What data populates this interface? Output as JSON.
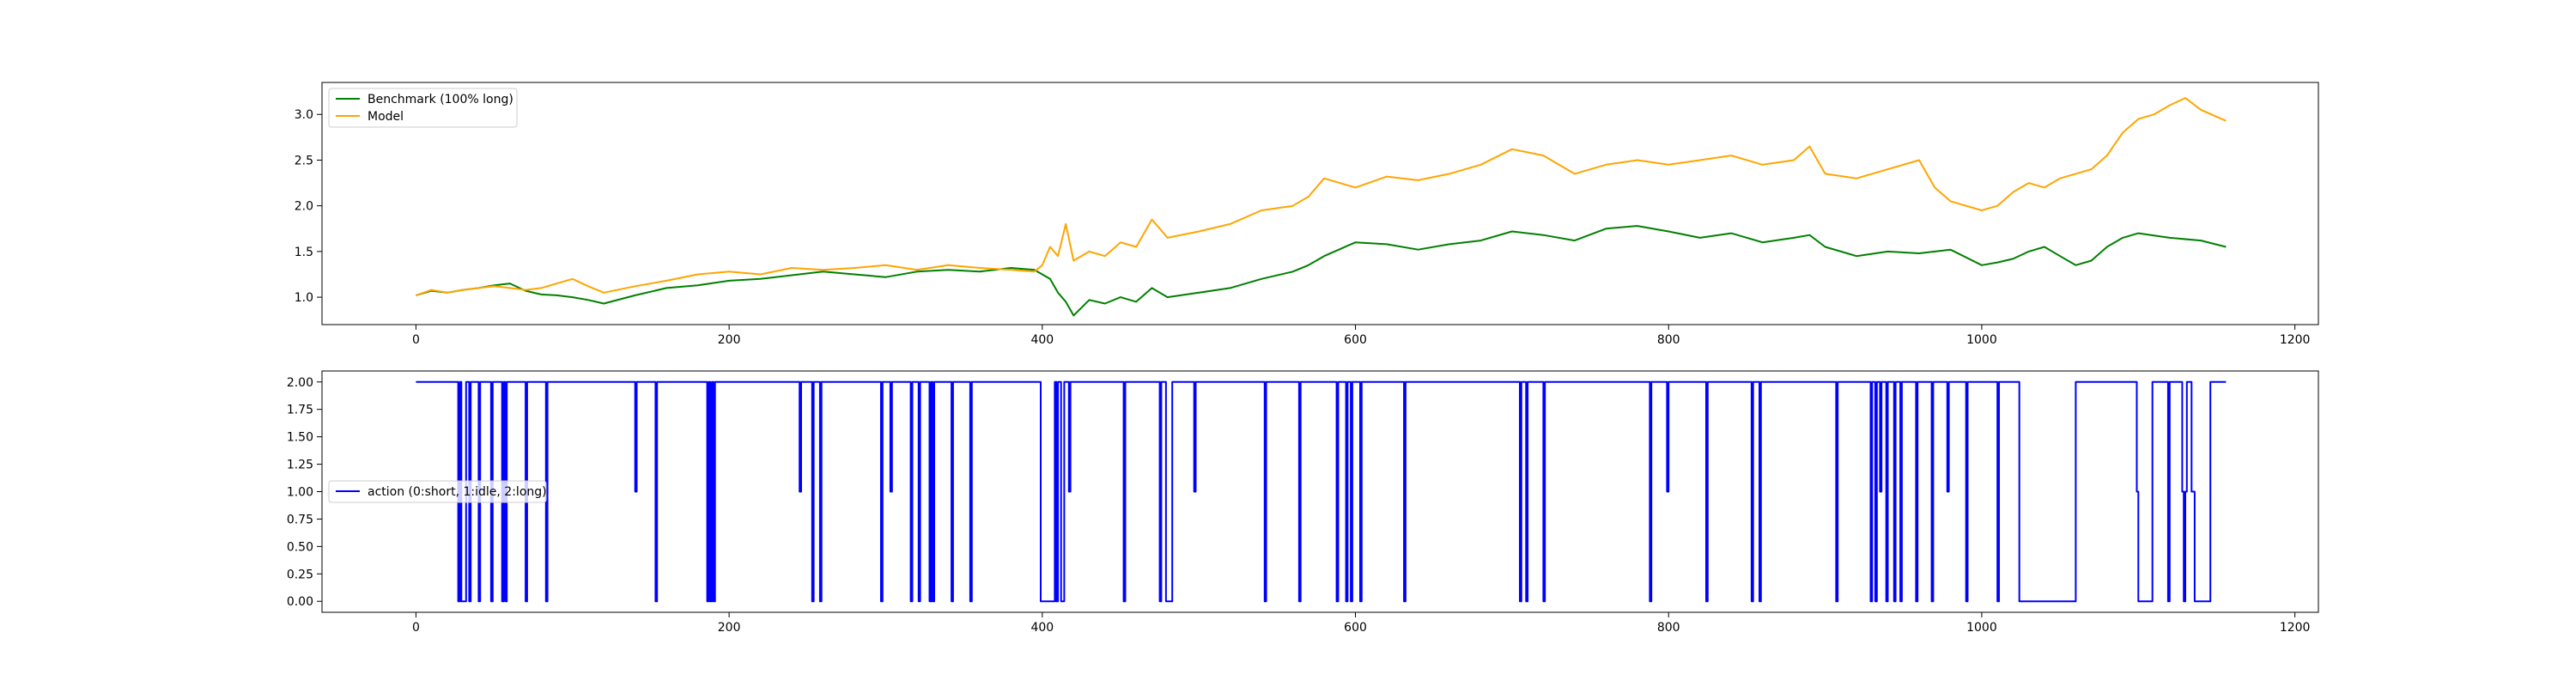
{
  "chart_data": [
    {
      "type": "line",
      "title": "",
      "xlabel": "",
      "ylabel": "",
      "xlim": [
        -60,
        1215
      ],
      "ylim": [
        0.7,
        3.35
      ],
      "xticks": [
        0,
        200,
        400,
        600,
        800,
        1000,
        1200
      ],
      "yticks": [
        1.0,
        1.5,
        2.0,
        2.5,
        3.0
      ],
      "ytick_labels": [
        "1.0",
        "1.5",
        "2.0",
        "2.5",
        "3.0"
      ],
      "grid": false,
      "legend": "upper left",
      "series": [
        {
          "name": "Benchmark (100% long)",
          "color": "#008000",
          "x": [
            0,
            10,
            20,
            30,
            40,
            50,
            60,
            70,
            80,
            90,
            100,
            110,
            120,
            140,
            160,
            180,
            200,
            220,
            240,
            260,
            280,
            300,
            320,
            340,
            360,
            380,
            395,
            400,
            405,
            410,
            415,
            420,
            430,
            440,
            450,
            460,
            470,
            480,
            500,
            520,
            540,
            560,
            570,
            580,
            600,
            620,
            640,
            660,
            680,
            700,
            720,
            740,
            760,
            780,
            800,
            820,
            840,
            860,
            880,
            890,
            900,
            920,
            940,
            960,
            980,
            1000,
            1010,
            1020,
            1030,
            1040,
            1050,
            1060,
            1070,
            1080,
            1090,
            1100,
            1120,
            1140,
            1156
          ],
          "values": [
            1.02,
            1.07,
            1.05,
            1.08,
            1.1,
            1.13,
            1.15,
            1.07,
            1.03,
            1.02,
            1.0,
            0.97,
            0.93,
            1.02,
            1.1,
            1.13,
            1.18,
            1.2,
            1.24,
            1.28,
            1.25,
            1.22,
            1.28,
            1.3,
            1.28,
            1.32,
            1.3,
            1.25,
            1.2,
            1.05,
            0.95,
            0.8,
            0.97,
            0.93,
            1.0,
            0.95,
            1.1,
            1.0,
            1.05,
            1.1,
            1.2,
            1.28,
            1.35,
            1.45,
            1.6,
            1.58,
            1.52,
            1.58,
            1.62,
            1.72,
            1.68,
            1.62,
            1.75,
            1.78,
            1.72,
            1.65,
            1.7,
            1.6,
            1.65,
            1.68,
            1.55,
            1.45,
            1.5,
            1.48,
            1.52,
            1.35,
            1.38,
            1.42,
            1.5,
            1.55,
            1.45,
            1.35,
            1.4,
            1.55,
            1.65,
            1.7,
            1.65,
            1.62,
            1.55
          ]
        },
        {
          "name": "Model",
          "color": "#FFA500",
          "x": [
            0,
            10,
            20,
            30,
            40,
            50,
            60,
            70,
            80,
            90,
            100,
            110,
            120,
            140,
            160,
            180,
            200,
            220,
            240,
            260,
            280,
            300,
            320,
            340,
            360,
            380,
            395,
            400,
            405,
            410,
            415,
            420,
            430,
            440,
            450,
            460,
            470,
            480,
            500,
            520,
            540,
            560,
            570,
            580,
            600,
            620,
            640,
            660,
            680,
            700,
            720,
            740,
            760,
            780,
            800,
            820,
            840,
            860,
            880,
            890,
            900,
            920,
            940,
            960,
            970,
            980,
            1000,
            1010,
            1020,
            1030,
            1040,
            1050,
            1060,
            1070,
            1080,
            1090,
            1100,
            1110,
            1120,
            1130,
            1140,
            1156
          ],
          "values": [
            1.02,
            1.08,
            1.05,
            1.08,
            1.1,
            1.12,
            1.1,
            1.08,
            1.1,
            1.15,
            1.2,
            1.12,
            1.05,
            1.12,
            1.18,
            1.25,
            1.28,
            1.25,
            1.32,
            1.3,
            1.32,
            1.35,
            1.3,
            1.35,
            1.32,
            1.3,
            1.28,
            1.35,
            1.55,
            1.45,
            1.8,
            1.4,
            1.5,
            1.45,
            1.6,
            1.55,
            1.85,
            1.65,
            1.72,
            1.8,
            1.95,
            2.0,
            2.1,
            2.3,
            2.2,
            2.32,
            2.28,
            2.35,
            2.45,
            2.62,
            2.55,
            2.35,
            2.45,
            2.5,
            2.45,
            2.5,
            2.55,
            2.45,
            2.5,
            2.65,
            2.35,
            2.3,
            2.4,
            2.5,
            2.2,
            2.05,
            1.95,
            2.0,
            2.15,
            2.25,
            2.2,
            2.3,
            2.35,
            2.4,
            2.55,
            2.8,
            2.95,
            3.0,
            3.1,
            3.18,
            3.05,
            2.93
          ]
        }
      ]
    },
    {
      "type": "line",
      "title": "",
      "xlabel": "",
      "ylabel": "",
      "xlim": [
        -60,
        1215
      ],
      "ylim": [
        -0.1,
        2.1
      ],
      "xticks": [
        0,
        200,
        400,
        600,
        800,
        1000,
        1200
      ],
      "yticks": [
        0.0,
        0.25,
        0.5,
        0.75,
        1.0,
        1.25,
        1.5,
        1.75,
        2.0
      ],
      "ytick_labels": [
        "0.00",
        "0.25",
        "0.50",
        "0.75",
        "1.00",
        "1.25",
        "1.50",
        "1.75",
        "2.00"
      ],
      "grid": false,
      "legend": "center left",
      "series": [
        {
          "name": "action (0:short, 1:idle, 2:long)",
          "color": "#0000FF",
          "step": true,
          "segments": [
            [
              0,
              2
            ],
            [
              27,
              0
            ],
            [
              28,
              2
            ],
            [
              29,
              0
            ],
            [
              32,
              2
            ],
            [
              34,
              0
            ],
            [
              35,
              2
            ],
            [
              40,
              0
            ],
            [
              41,
              2
            ],
            [
              48,
              0
            ],
            [
              49,
              2
            ],
            [
              55,
              0
            ],
            [
              56,
              2
            ],
            [
              57,
              0
            ],
            [
              58,
              2
            ],
            [
              70,
              0
            ],
            [
              71,
              2
            ],
            [
              83,
              0
            ],
            [
              84,
              2
            ],
            [
              140,
              1
            ],
            [
              141,
              2
            ],
            [
              153,
              0
            ],
            [
              154,
              2
            ],
            [
              186,
              0
            ],
            [
              187,
              2
            ],
            [
              188,
              0
            ],
            [
              189,
              2
            ],
            [
              190,
              0
            ],
            [
              191,
              2
            ],
            [
              245,
              1
            ],
            [
              246,
              2
            ],
            [
              253,
              0
            ],
            [
              254,
              2
            ],
            [
              258,
              0
            ],
            [
              259,
              2
            ],
            [
              297,
              0
            ],
            [
              298,
              2
            ],
            [
              303,
              1
            ],
            [
              304,
              2
            ],
            [
              316,
              0
            ],
            [
              317,
              2
            ],
            [
              321,
              0
            ],
            [
              322,
              2
            ],
            [
              328,
              0
            ],
            [
              329,
              2
            ],
            [
              330,
              0
            ],
            [
              331,
              2
            ],
            [
              342,
              0
            ],
            [
              343,
              2
            ],
            [
              354,
              0
            ],
            [
              355,
              2
            ],
            [
              399,
              0
            ],
            [
              408,
              2
            ],
            [
              409,
              0
            ],
            [
              410,
              2
            ],
            [
              412,
              0
            ],
            [
              414,
              2
            ],
            [
              417,
              1
            ],
            [
              418,
              2
            ],
            [
              452,
              0
            ],
            [
              453,
              2
            ],
            [
              475,
              0
            ],
            [
              476,
              2
            ],
            [
              479,
              0
            ],
            [
              483,
              2
            ],
            [
              497,
              1
            ],
            [
              498,
              2
            ],
            [
              542,
              0
            ],
            [
              543,
              2
            ],
            [
              564,
              0
            ],
            [
              565,
              2
            ],
            [
              588,
              0
            ],
            [
              589,
              2
            ],
            [
              594,
              0
            ],
            [
              595,
              2
            ],
            [
              597,
              0
            ],
            [
              598,
              2
            ],
            [
              603,
              0
            ],
            [
              604,
              2
            ],
            [
              631,
              0
            ],
            [
              632,
              2
            ],
            [
              705,
              0
            ],
            [
              706,
              2
            ],
            [
              709,
              0
            ],
            [
              710,
              2
            ],
            [
              720,
              0
            ],
            [
              721,
              2
            ],
            [
              788,
              0
            ],
            [
              789,
              2
            ],
            [
              799,
              1
            ],
            [
              800,
              2
            ],
            [
              824,
              0
            ],
            [
              825,
              2
            ],
            [
              853,
              0
            ],
            [
              854,
              2
            ],
            [
              858,
              0
            ],
            [
              859,
              2
            ],
            [
              907,
              0
            ],
            [
              908,
              2
            ],
            [
              929,
              0
            ],
            [
              930,
              2
            ],
            [
              932,
              0
            ],
            [
              933,
              2
            ],
            [
              935,
              1
            ],
            [
              936,
              2
            ],
            [
              939,
              0
            ],
            [
              940,
              2
            ],
            [
              944,
              0
            ],
            [
              945,
              2
            ],
            [
              948,
              0
            ],
            [
              949,
              2
            ],
            [
              958,
              0
            ],
            [
              959,
              2
            ],
            [
              968,
              0
            ],
            [
              969,
              2
            ],
            [
              978,
              1
            ],
            [
              979,
              2
            ],
            [
              990,
              0
            ],
            [
              991,
              2
            ],
            [
              1010,
              0
            ],
            [
              1011,
              2
            ],
            [
              1024,
              0
            ],
            [
              1060,
              2
            ],
            [
              1099,
              1
            ],
            [
              1100,
              0
            ],
            [
              1109,
              2
            ],
            [
              1119,
              0
            ],
            [
              1120,
              2
            ],
            [
              1128,
              1
            ],
            [
              1129,
              0
            ],
            [
              1130,
              1
            ],
            [
              1131,
              2
            ],
            [
              1134,
              1
            ],
            [
              1136,
              0
            ],
            [
              1146,
              2
            ],
            [
              1156,
              2
            ]
          ]
        }
      ]
    }
  ]
}
